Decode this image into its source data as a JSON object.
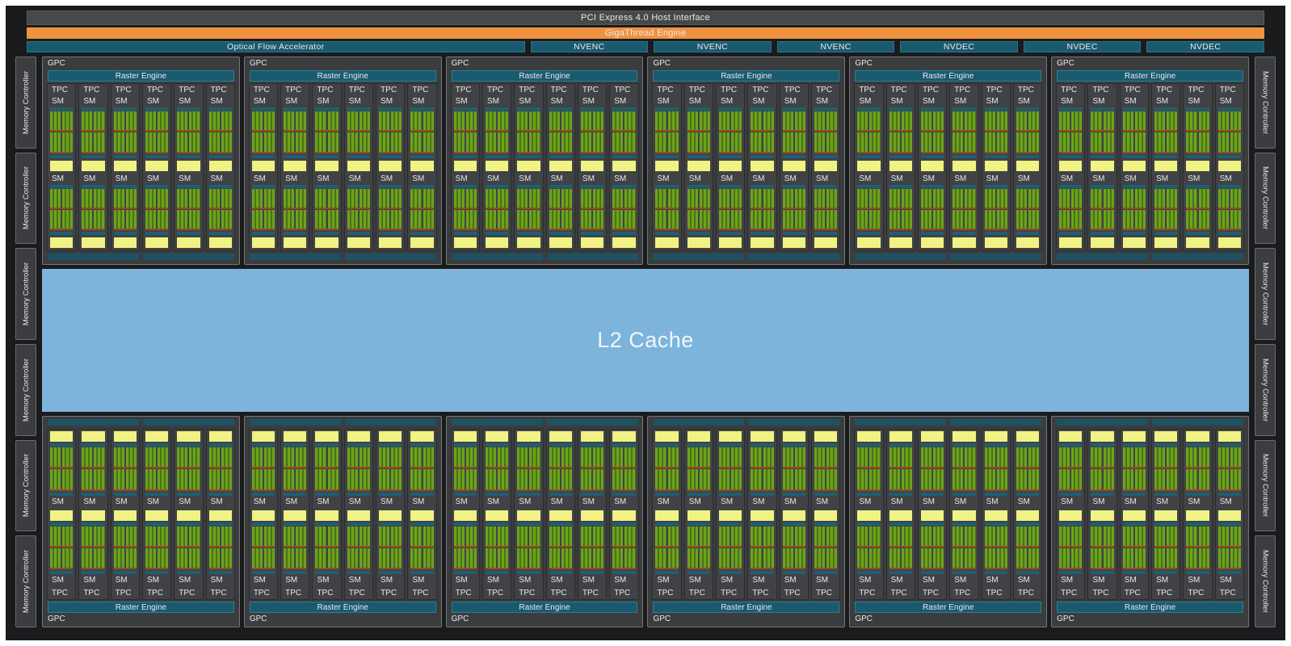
{
  "top_bars": {
    "pci": "PCI Express 4.0 Host Interface",
    "gigathread": "GigaThread Engine"
  },
  "media_row": {
    "optical_flow": "Optical Flow Accelerator",
    "engines": [
      "NVENC",
      "NVENC",
      "NVENC",
      "NVDEC",
      "NVDEC",
      "NVDEC"
    ]
  },
  "l2_cache": {
    "label": "L2 Cache"
  },
  "memory_controllers": {
    "label": "Memory Controller",
    "left_count": 6,
    "right_count": 6
  },
  "gpc": {
    "label": "GPC",
    "raster_label": "Raster Engine",
    "tpc_label": "TPC",
    "sm_label": "SM",
    "top_count": 6,
    "bottom_count": 6,
    "tpcs_per_gpc": 6,
    "sms_per_tpc": 2,
    "green_rows_per_sm": 2,
    "green_cells_per_row": 2,
    "edge_strips_per_gpc": 2
  },
  "colors": {
    "page_bg": "#ffffff",
    "die_bg": "#1a1b1d",
    "bar_gray": "#474849",
    "orange": "#f09340",
    "teal": "#1a5a6e",
    "teal_strip": "#1d5f73",
    "edge_strip": "#1d5262",
    "gpc_bg": "#3b3c3e",
    "gpc_border": "#75767a",
    "tpc_bg": "#414245",
    "tpc_border": "#2b2c2e",
    "green_light": "#6da21f",
    "green_dark": "#4a7414",
    "orange_strip": "#9c4a21",
    "yellow": "#f0f284",
    "l2_blue": "#7db4dc",
    "mc_bg": "#3c3d40",
    "mc_border": "#6b6c6f",
    "text": "#e9e9e9"
  }
}
